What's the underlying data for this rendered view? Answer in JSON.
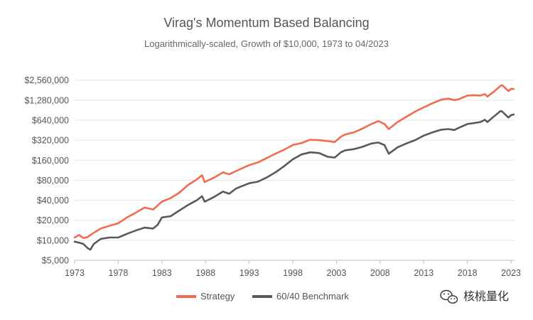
{
  "chart_data": {
    "type": "line",
    "title": "Virag's Momentum Based Balancing",
    "subtitle": "Logarithmically-scaled, Growth of $10,000, 1973 to 04/2023",
    "y_scale": "log",
    "ylim": [
      5000,
      3500000
    ],
    "xlim": [
      1973,
      2023.4
    ],
    "y_ticks": [
      "$5,000",
      "$10,000",
      "$20,000",
      "$40,000",
      "$80,000",
      "$160,000",
      "$320,000",
      "$640,000",
      "$1,280,000",
      "$2,560,000"
    ],
    "y_tick_values": [
      5000,
      10000,
      20000,
      40000,
      80000,
      160000,
      320000,
      640000,
      1280000,
      2560000
    ],
    "x_ticks": [
      "1973",
      "1978",
      "1983",
      "1988",
      "1993",
      "1998",
      "2003",
      "2008",
      "2013",
      "2018",
      "2023"
    ],
    "x_tick_values": [
      1973,
      1978,
      1983,
      1988,
      1993,
      1998,
      2003,
      2008,
      2013,
      2018,
      2023
    ],
    "grid": "horizontal",
    "legend_position": "bottom",
    "series": [
      {
        "name": "Strategy",
        "color": "#f26b4f",
        "x": [
          1973.0,
          1973.5,
          1974.0,
          1974.5,
          1975.0,
          1976.0,
          1977.0,
          1978.0,
          1979.0,
          1980.0,
          1981.0,
          1982.0,
          1983.0,
          1984.0,
          1985.0,
          1986.0,
          1987.0,
          1987.6,
          1987.9,
          1989.0,
          1990.0,
          1990.7,
          1991.5,
          1993.0,
          1994.0,
          1995.0,
          1996.0,
          1997.0,
          1998.0,
          1999.0,
          2000.0,
          2001.0,
          2002.0,
          2002.8,
          2003.5,
          2004.0,
          2005.0,
          2006.0,
          2007.0,
          2007.8,
          2008.5,
          2009.0,
          2010.0,
          2011.0,
          2012.0,
          2013.0,
          2014.0,
          2015.0,
          2015.8,
          2016.5,
          2017.0,
          2018.0,
          2018.8,
          2019.5,
          2020.0,
          2020.3,
          2021.0,
          2021.8,
          2022.0,
          2022.7,
          2023.0,
          2023.3
        ],
        "values": [
          11000,
          12000,
          10800,
          11200,
          12500,
          15000,
          16500,
          18000,
          22000,
          26000,
          31000,
          29000,
          38000,
          43000,
          52000,
          68000,
          82000,
          95000,
          75000,
          88000,
          105000,
          98000,
          110000,
          135000,
          148000,
          172000,
          200000,
          230000,
          270000,
          290000,
          325000,
          320000,
          310000,
          300000,
          360000,
          390000,
          420000,
          480000,
          560000,
          620000,
          560000,
          470000,
          600000,
          720000,
          860000,
          1000000,
          1150000,
          1300000,
          1350000,
          1280000,
          1320000,
          1500000,
          1520000,
          1500000,
          1580000,
          1450000,
          1700000,
          2100000,
          2150000,
          1750000,
          1900000,
          1880000
        ]
      },
      {
        "name": "60/40 Benchmark",
        "color": "#595959",
        "x": [
          1973.0,
          1973.5,
          1974.0,
          1974.5,
          1974.8,
          1975.2,
          1976.0,
          1977.0,
          1978.0,
          1979.0,
          1980.0,
          1981.0,
          1982.0,
          1982.5,
          1983.0,
          1984.0,
          1985.0,
          1986.0,
          1987.0,
          1987.6,
          1987.9,
          1989.0,
          1990.0,
          1990.7,
          1991.5,
          1993.0,
          1994.0,
          1995.0,
          1996.0,
          1997.0,
          1998.0,
          1999.0,
          2000.0,
          2001.0,
          2002.0,
          2002.8,
          2003.5,
          2004.0,
          2005.0,
          2006.0,
          2007.0,
          2007.8,
          2008.5,
          2009.0,
          2010.0,
          2011.0,
          2012.0,
          2013.0,
          2014.0,
          2015.0,
          2015.8,
          2016.5,
          2017.0,
          2018.0,
          2018.8,
          2019.5,
          2020.0,
          2020.3,
          2021.0,
          2021.8,
          2022.0,
          2022.7,
          2023.0,
          2023.3
        ],
        "values": [
          9500,
          9200,
          8800,
          7600,
          7200,
          8800,
          10500,
          11000,
          11000,
          12500,
          14000,
          15500,
          15000,
          17000,
          22000,
          23000,
          28000,
          34000,
          40000,
          46000,
          38000,
          45000,
          54000,
          50000,
          60000,
          72000,
          76000,
          88000,
          105000,
          130000,
          165000,
          195000,
          210000,
          205000,
          180000,
          175000,
          210000,
          225000,
          235000,
          255000,
          285000,
          295000,
          270000,
          200000,
          250000,
          285000,
          320000,
          375000,
          420000,
          460000,
          470000,
          455000,
          490000,
          560000,
          580000,
          600000,
          650000,
          600000,
          720000,
          880000,
          860000,
          700000,
          760000,
          780000
        ]
      }
    ]
  },
  "watermark": {
    "text": "核桃量化",
    "icon": "wechat-logo-icon"
  }
}
